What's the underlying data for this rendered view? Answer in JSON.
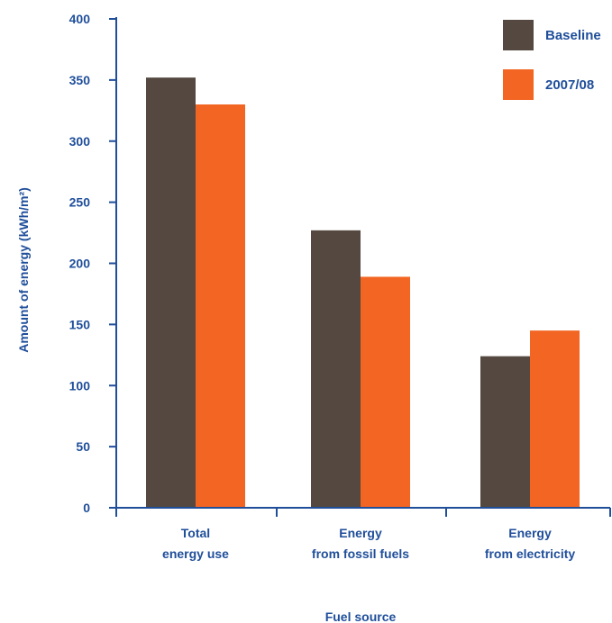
{
  "chart_data": {
    "type": "bar",
    "title": "",
    "xlabel": "Fuel source",
    "ylabel": "Amount of energy (kWh/m²)",
    "ylim": [
      0,
      400
    ],
    "yticks": [
      0,
      50,
      100,
      150,
      200,
      250,
      300,
      350,
      400
    ],
    "categories": [
      [
        "Total",
        "energy use"
      ],
      [
        "Energy",
        "from fossil fuels"
      ],
      [
        "Energy",
        "from electricity"
      ]
    ],
    "series": [
      {
        "name": "Baseline",
        "values": [
          352,
          227,
          124
        ],
        "color": "#544840"
      },
      {
        "name": "2007/08",
        "values": [
          330,
          189,
          145
        ],
        "color": "#f26522"
      }
    ],
    "legend_position": "top-right",
    "grid": false,
    "axis_color": "#1f4e9a"
  }
}
